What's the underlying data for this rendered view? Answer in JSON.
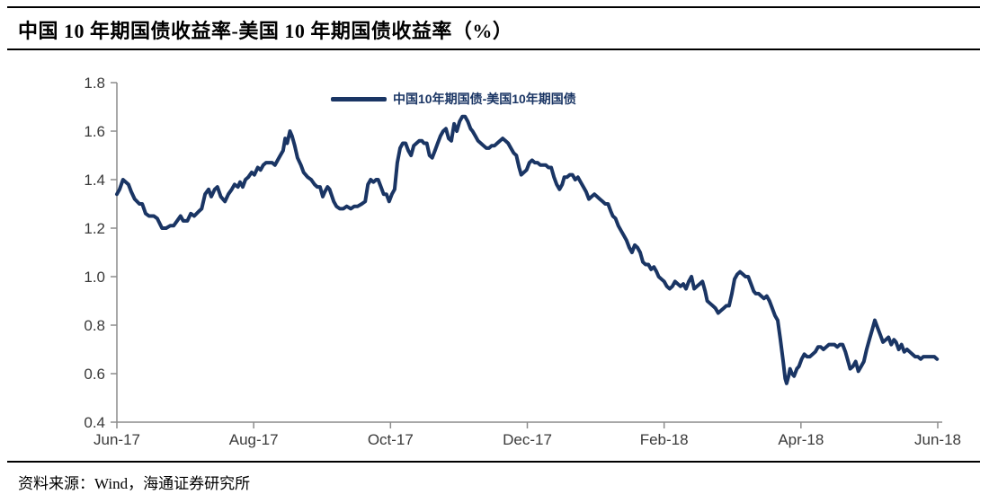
{
  "header": {
    "title": "中国 10 年期国债收益率-美国 10 年期国债收益率（%）"
  },
  "footer": {
    "source": "资料来源：Wind，海通证券研究所"
  },
  "colors": {
    "line": "#1a3564",
    "axis": "#8c8c8c",
    "tick_label": "#3a3a3a",
    "rule": "#000000"
  },
  "chart_data": {
    "type": "line",
    "title": "中国 10 年期国债收益率-美国 10 年期国债收益率（%）",
    "xlabel": "",
    "ylabel": "",
    "ylim": [
      0.4,
      1.8
    ],
    "y_ticks": [
      0.4,
      0.6,
      0.8,
      1.0,
      1.2,
      1.4,
      1.6,
      1.8
    ],
    "x_ticks": [
      "Jun-17",
      "Aug-17",
      "Oct-17",
      "Dec-17",
      "Feb-18",
      "Apr-18",
      "Jun-18"
    ],
    "x_range_months": [
      0,
      12
    ],
    "grid": false,
    "legend_position": "top-center",
    "series": [
      {
        "name": "中国10年期国债-美国10年期国债",
        "color": "#1a3564",
        "x_unit": "months since Jun-2017",
        "points": [
          [
            0.0,
            1.34
          ],
          [
            0.04,
            1.36
          ],
          [
            0.09,
            1.4
          ],
          [
            0.13,
            1.39
          ],
          [
            0.17,
            1.38
          ],
          [
            0.21,
            1.35
          ],
          [
            0.26,
            1.32
          ],
          [
            0.33,
            1.3
          ],
          [
            0.37,
            1.3
          ],
          [
            0.42,
            1.26
          ],
          [
            0.47,
            1.25
          ],
          [
            0.54,
            1.25
          ],
          [
            0.59,
            1.24
          ],
          [
            0.66,
            1.2
          ],
          [
            0.72,
            1.2
          ],
          [
            0.78,
            1.21
          ],
          [
            0.83,
            1.21
          ],
          [
            0.88,
            1.23
          ],
          [
            0.93,
            1.25
          ],
          [
            0.97,
            1.23
          ],
          [
            1.03,
            1.23
          ],
          [
            1.08,
            1.26
          ],
          [
            1.13,
            1.25
          ],
          [
            1.2,
            1.27
          ],
          [
            1.24,
            1.28
          ],
          [
            1.29,
            1.34
          ],
          [
            1.34,
            1.36
          ],
          [
            1.38,
            1.33
          ],
          [
            1.43,
            1.36
          ],
          [
            1.47,
            1.37
          ],
          [
            1.52,
            1.33
          ],
          [
            1.58,
            1.31
          ],
          [
            1.63,
            1.34
          ],
          [
            1.68,
            1.36
          ],
          [
            1.72,
            1.38
          ],
          [
            1.77,
            1.37
          ],
          [
            1.8,
            1.39
          ],
          [
            1.84,
            1.37
          ],
          [
            1.88,
            1.4
          ],
          [
            1.92,
            1.41
          ],
          [
            1.97,
            1.43
          ],
          [
            2.01,
            1.42
          ],
          [
            2.06,
            1.45
          ],
          [
            2.1,
            1.44
          ],
          [
            2.14,
            1.46
          ],
          [
            2.18,
            1.47
          ],
          [
            2.22,
            1.47
          ],
          [
            2.27,
            1.47
          ],
          [
            2.31,
            1.46
          ],
          [
            2.35,
            1.48
          ],
          [
            2.39,
            1.5
          ],
          [
            2.43,
            1.52
          ],
          [
            2.46,
            1.57
          ],
          [
            2.49,
            1.55
          ],
          [
            2.53,
            1.6
          ],
          [
            2.56,
            1.58
          ],
          [
            2.6,
            1.54
          ],
          [
            2.64,
            1.49
          ],
          [
            2.69,
            1.46
          ],
          [
            2.73,
            1.43
          ],
          [
            2.79,
            1.41
          ],
          [
            2.84,
            1.4
          ],
          [
            2.89,
            1.38
          ],
          [
            2.93,
            1.37
          ],
          [
            2.97,
            1.37
          ],
          [
            3.01,
            1.33
          ],
          [
            3.04,
            1.35
          ],
          [
            3.08,
            1.37
          ],
          [
            3.11,
            1.36
          ],
          [
            3.17,
            1.31
          ],
          [
            3.21,
            1.29
          ],
          [
            3.26,
            1.28
          ],
          [
            3.31,
            1.28
          ],
          [
            3.36,
            1.29
          ],
          [
            3.42,
            1.28
          ],
          [
            3.47,
            1.29
          ],
          [
            3.52,
            1.29
          ],
          [
            3.58,
            1.3
          ],
          [
            3.63,
            1.31
          ],
          [
            3.67,
            1.38
          ],
          [
            3.71,
            1.4
          ],
          [
            3.75,
            1.39
          ],
          [
            3.79,
            1.4
          ],
          [
            3.82,
            1.4
          ],
          [
            3.86,
            1.37
          ],
          [
            3.9,
            1.34
          ],
          [
            3.94,
            1.34
          ],
          [
            3.98,
            1.31
          ],
          [
            4.02,
            1.34
          ],
          [
            4.06,
            1.36
          ],
          [
            4.1,
            1.47
          ],
          [
            4.14,
            1.53
          ],
          [
            4.18,
            1.55
          ],
          [
            4.22,
            1.55
          ],
          [
            4.26,
            1.52
          ],
          [
            4.3,
            1.5
          ],
          [
            4.34,
            1.54
          ],
          [
            4.38,
            1.55
          ],
          [
            4.42,
            1.56
          ],
          [
            4.46,
            1.56
          ],
          [
            4.49,
            1.55
          ],
          [
            4.53,
            1.55
          ],
          [
            4.57,
            1.5
          ],
          [
            4.61,
            1.49
          ],
          [
            4.65,
            1.52
          ],
          [
            4.69,
            1.55
          ],
          [
            4.73,
            1.58
          ],
          [
            4.77,
            1.6
          ],
          [
            4.81,
            1.61
          ],
          [
            4.85,
            1.57
          ],
          [
            4.89,
            1.56
          ],
          [
            4.93,
            1.63
          ],
          [
            4.97,
            1.6
          ],
          [
            5.01,
            1.64
          ],
          [
            5.05,
            1.66
          ],
          [
            5.09,
            1.66
          ],
          [
            5.13,
            1.64
          ],
          [
            5.17,
            1.61
          ],
          [
            5.2,
            1.6
          ],
          [
            5.24,
            1.58
          ],
          [
            5.28,
            1.56
          ],
          [
            5.32,
            1.55
          ],
          [
            5.36,
            1.54
          ],
          [
            5.4,
            1.53
          ],
          [
            5.44,
            1.53
          ],
          [
            5.48,
            1.54
          ],
          [
            5.52,
            1.54
          ],
          [
            5.56,
            1.55
          ],
          [
            5.6,
            1.56
          ],
          [
            5.64,
            1.57
          ],
          [
            5.68,
            1.56
          ],
          [
            5.72,
            1.55
          ],
          [
            5.76,
            1.53
          ],
          [
            5.8,
            1.51
          ],
          [
            5.84,
            1.5
          ],
          [
            5.88,
            1.45
          ],
          [
            5.91,
            1.42
          ],
          [
            5.95,
            1.43
          ],
          [
            5.99,
            1.44
          ],
          [
            6.03,
            1.47
          ],
          [
            6.07,
            1.48
          ],
          [
            6.11,
            1.47
          ],
          [
            6.15,
            1.47
          ],
          [
            6.19,
            1.46
          ],
          [
            6.23,
            1.46
          ],
          [
            6.27,
            1.46
          ],
          [
            6.31,
            1.45
          ],
          [
            6.35,
            1.45
          ],
          [
            6.39,
            1.41
          ],
          [
            6.43,
            1.38
          ],
          [
            6.47,
            1.36
          ],
          [
            6.51,
            1.38
          ],
          [
            6.54,
            1.41
          ],
          [
            6.58,
            1.41
          ],
          [
            6.62,
            1.42
          ],
          [
            6.66,
            1.42
          ],
          [
            6.7,
            1.4
          ],
          [
            6.74,
            1.41
          ],
          [
            6.78,
            1.39
          ],
          [
            6.82,
            1.37
          ],
          [
            6.86,
            1.35
          ],
          [
            6.9,
            1.32
          ],
          [
            6.94,
            1.33
          ],
          [
            6.98,
            1.34
          ],
          [
            7.02,
            1.33
          ],
          [
            7.06,
            1.32
          ],
          [
            7.1,
            1.31
          ],
          [
            7.14,
            1.3
          ],
          [
            7.18,
            1.3
          ],
          [
            7.22,
            1.27
          ],
          [
            7.25,
            1.25
          ],
          [
            7.29,
            1.24
          ],
          [
            7.33,
            1.21
          ],
          [
            7.37,
            1.19
          ],
          [
            7.41,
            1.17
          ],
          [
            7.45,
            1.15
          ],
          [
            7.49,
            1.12
          ],
          [
            7.53,
            1.1
          ],
          [
            7.57,
            1.13
          ],
          [
            7.61,
            1.12
          ],
          [
            7.65,
            1.1
          ],
          [
            7.69,
            1.06
          ],
          [
            7.73,
            1.05
          ],
          [
            7.77,
            1.05
          ],
          [
            7.81,
            1.03
          ],
          [
            7.85,
            1.04
          ],
          [
            7.89,
            1.02
          ],
          [
            7.92,
            1.0
          ],
          [
            7.96,
            0.99
          ],
          [
            8.0,
            0.98
          ],
          [
            8.04,
            0.96
          ],
          [
            8.08,
            0.95
          ],
          [
            8.12,
            0.96
          ],
          [
            8.16,
            0.98
          ],
          [
            8.2,
            0.97
          ],
          [
            8.24,
            0.96
          ],
          [
            8.28,
            0.97
          ],
          [
            8.32,
            0.95
          ],
          [
            8.36,
            0.98
          ],
          [
            8.4,
            1.0
          ],
          [
            8.44,
            0.95
          ],
          [
            8.48,
            0.96
          ],
          [
            8.52,
            0.97
          ],
          [
            8.56,
            0.98
          ],
          [
            8.6,
            0.94
          ],
          [
            8.63,
            0.9
          ],
          [
            8.67,
            0.89
          ],
          [
            8.71,
            0.88
          ],
          [
            8.75,
            0.87
          ],
          [
            8.79,
            0.85
          ],
          [
            8.83,
            0.86
          ],
          [
            8.87,
            0.87
          ],
          [
            8.91,
            0.88
          ],
          [
            8.95,
            0.88
          ],
          [
            8.99,
            0.93
          ],
          [
            9.03,
            0.99
          ],
          [
            9.07,
            1.01
          ],
          [
            9.11,
            1.02
          ],
          [
            9.15,
            1.01
          ],
          [
            9.19,
            1.0
          ],
          [
            9.23,
            1.0
          ],
          [
            9.27,
            0.97
          ],
          [
            9.31,
            0.94
          ],
          [
            9.34,
            0.93
          ],
          [
            9.38,
            0.93
          ],
          [
            9.42,
            0.92
          ],
          [
            9.46,
            0.91
          ],
          [
            9.5,
            0.92
          ],
          [
            9.54,
            0.9
          ],
          [
            9.58,
            0.87
          ],
          [
            9.62,
            0.84
          ],
          [
            9.66,
            0.82
          ],
          [
            9.7,
            0.74
          ],
          [
            9.74,
            0.65
          ],
          [
            9.77,
            0.58
          ],
          [
            9.79,
            0.56
          ],
          [
            9.82,
            0.59
          ],
          [
            9.84,
            0.62
          ],
          [
            9.87,
            0.6
          ],
          [
            9.9,
            0.59
          ],
          [
            9.94,
            0.62
          ],
          [
            9.97,
            0.63
          ],
          [
            10.01,
            0.66
          ],
          [
            10.05,
            0.68
          ],
          [
            10.09,
            0.67
          ],
          [
            10.13,
            0.67
          ],
          [
            10.17,
            0.68
          ],
          [
            10.21,
            0.69
          ],
          [
            10.25,
            0.71
          ],
          [
            10.29,
            0.71
          ],
          [
            10.33,
            0.7
          ],
          [
            10.37,
            0.71
          ],
          [
            10.41,
            0.72
          ],
          [
            10.45,
            0.72
          ],
          [
            10.49,
            0.72
          ],
          [
            10.53,
            0.71
          ],
          [
            10.57,
            0.72
          ],
          [
            10.61,
            0.72
          ],
          [
            10.65,
            0.69
          ],
          [
            10.68,
            0.66
          ],
          [
            10.72,
            0.62
          ],
          [
            10.76,
            0.63
          ],
          [
            10.8,
            0.65
          ],
          [
            10.84,
            0.61
          ],
          [
            10.88,
            0.63
          ],
          [
            10.92,
            0.65
          ],
          [
            10.96,
            0.7
          ],
          [
            11.0,
            0.74
          ],
          [
            11.04,
            0.78
          ],
          [
            11.08,
            0.82
          ],
          [
            11.12,
            0.79
          ],
          [
            11.16,
            0.76
          ],
          [
            11.2,
            0.73
          ],
          [
            11.24,
            0.74
          ],
          [
            11.28,
            0.75
          ],
          [
            11.32,
            0.72
          ],
          [
            11.36,
            0.74
          ],
          [
            11.39,
            0.73
          ],
          [
            11.43,
            0.7
          ],
          [
            11.47,
            0.72
          ],
          [
            11.51,
            0.69
          ],
          [
            11.55,
            0.7
          ],
          [
            11.59,
            0.69
          ],
          [
            11.63,
            0.68
          ],
          [
            11.67,
            0.67
          ],
          [
            11.71,
            0.67
          ],
          [
            11.75,
            0.66
          ],
          [
            11.79,
            0.67
          ],
          [
            11.83,
            0.67
          ],
          [
            11.87,
            0.67
          ],
          [
            11.91,
            0.67
          ],
          [
            11.95,
            0.67
          ],
          [
            11.99,
            0.66
          ]
        ]
      }
    ]
  }
}
